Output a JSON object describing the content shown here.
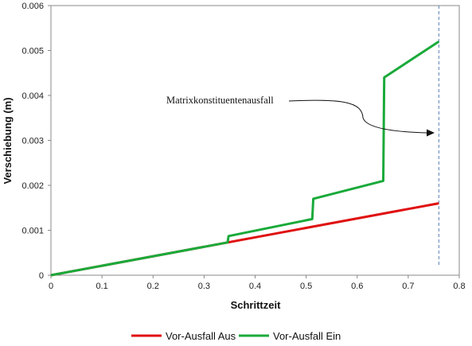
{
  "chart_data": {
    "type": "line",
    "xlabel": "Schrittzeit",
    "ylabel": "Verschiebung (m)",
    "xlim": [
      0,
      0.8
    ],
    "ylim": [
      0,
      0.006
    ],
    "x_ticks": [
      "0",
      "0.1",
      "0.2",
      "0.3",
      "0.4",
      "0.5",
      "0.6",
      "0.7",
      "0.8"
    ],
    "y_ticks": [
      "0",
      "0.001",
      "0.002",
      "0.003",
      "0.004",
      "0.005",
      "0.006"
    ],
    "grid": false,
    "legend_position": "bottom",
    "series": [
      {
        "name": "Vor-Ausfall Aus",
        "color": "#e01010",
        "points": [
          [
            0,
            0
          ],
          [
            0.76,
            0.0016
          ]
        ]
      },
      {
        "name": "Vor-Ausfall Ein",
        "color": "#1aaa3a",
        "points": [
          [
            0,
            0
          ],
          [
            0.346,
            0.00073
          ],
          [
            0.348,
            0.00087
          ],
          [
            0.512,
            0.00125
          ],
          [
            0.514,
            0.0017
          ],
          [
            0.651,
            0.0021
          ],
          [
            0.653,
            0.0044
          ],
          [
            0.76,
            0.0052
          ]
        ]
      }
    ],
    "reference_line": {
      "x": 0.76,
      "color": "#5a7fb5",
      "style": "dashed"
    },
    "annotation": {
      "text": "Matrixkonstituentenausfall"
    }
  }
}
